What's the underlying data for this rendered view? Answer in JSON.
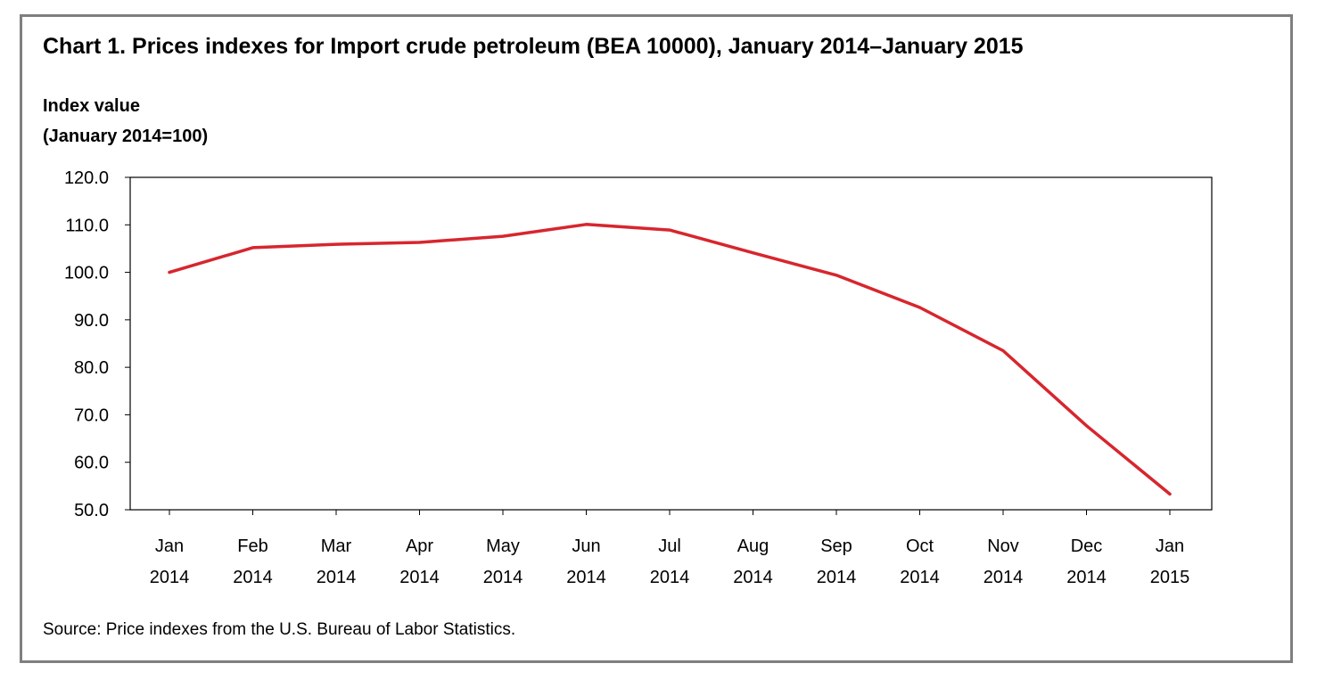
{
  "chart_data": {
    "type": "line",
    "title": "Chart 1. Prices indexes for Import crude petroleum (BEA 10000), January 2014–January 2015",
    "ylabel_line1": "Index value",
    "ylabel_line2": "(January  2014=100)",
    "xlabel": "",
    "ylim": [
      50.0,
      120.0
    ],
    "y_ticks": [
      "120.0",
      "110.0",
      "100.0",
      "90.0",
      "80.0",
      "70.0",
      "60.0",
      "50.0"
    ],
    "categories": [
      [
        "Jan",
        "2014"
      ],
      [
        "Feb",
        "2014"
      ],
      [
        "Mar",
        "2014"
      ],
      [
        "Apr",
        "2014"
      ],
      [
        "May",
        "2014"
      ],
      [
        "Jun",
        "2014"
      ],
      [
        "Jul",
        "2014"
      ],
      [
        "Aug",
        "2014"
      ],
      [
        "Sep",
        "2014"
      ],
      [
        "Oct",
        "2014"
      ],
      [
        "Nov",
        "2014"
      ],
      [
        "Dec",
        "2014"
      ],
      [
        "Jan",
        "2015"
      ]
    ],
    "series": [
      {
        "values": [
          100.0,
          105.2,
          105.9,
          106.3,
          107.6,
          110.1,
          108.9,
          104.1,
          99.4,
          92.6,
          83.5,
          67.7,
          53.3
        ],
        "color": "#d7262e"
      }
    ],
    "grid": false,
    "legend": "none"
  },
  "source": "Source: Price indexes from the U.S. Bureau of Labor Statistics."
}
